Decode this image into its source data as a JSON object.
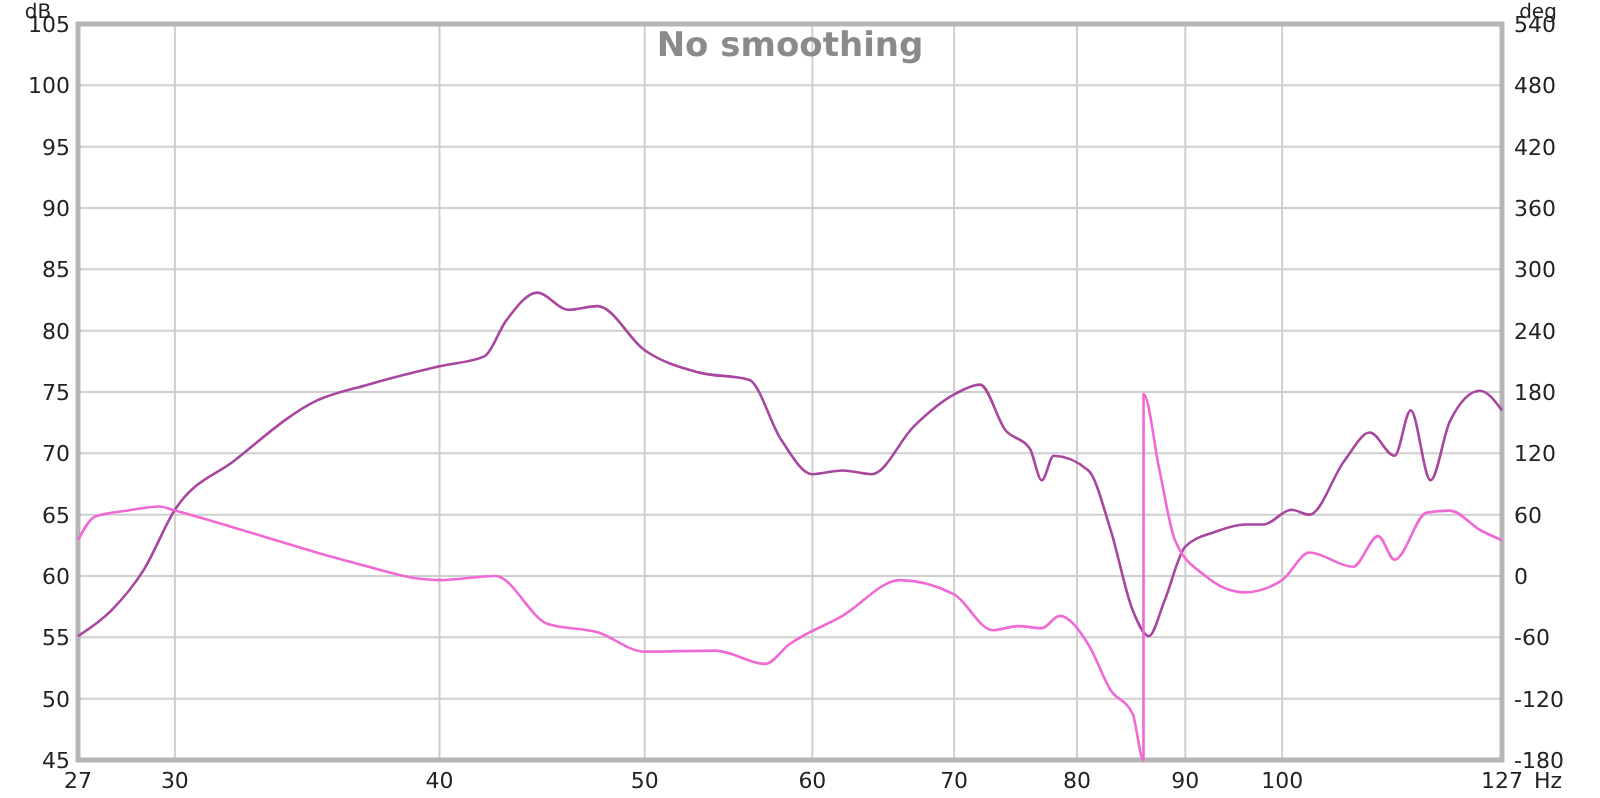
{
  "chart_data": {
    "type": "line",
    "title": "No smoothing",
    "xlabel": "Hz",
    "ylabel": "dB",
    "y2label": "deg",
    "log": "x",
    "grid": true,
    "marker": "none",
    "line_style": "solid",
    "xlim": [
      27,
      127
    ],
    "xticks": [
      27,
      30,
      40,
      50,
      60,
      70,
      80,
      90,
      100,
      127
    ],
    "ylim": [
      45,
      105
    ],
    "yticks": [
      45,
      50,
      55,
      60,
      65,
      70,
      75,
      80,
      85,
      90,
      95,
      100,
      105
    ],
    "y2lim": [
      -180,
      540
    ],
    "y2ticks": [
      -180,
      -120,
      -60,
      0,
      60,
      120,
      180,
      240,
      300,
      360,
      420,
      480,
      540
    ],
    "series": [
      {
        "color": "#a8479f",
        "x": [
          27,
          28,
          29,
          30,
          32,
          35,
          37,
          40,
          42,
          43,
          44.5,
          46,
          47.5,
          50,
          53,
          56,
          58,
          60,
          62,
          64,
          67,
          70,
          72,
          74,
          76,
          77,
          78,
          81,
          83,
          85,
          86.5,
          88,
          90,
          93,
          96,
          98,
          101,
          103,
          107,
          110,
          113,
          115,
          117.5,
          120,
          124,
          127
        ],
        "values": [
          55.1,
          57.2,
          60.5,
          65.4,
          69.4,
          74.3,
          75.6,
          77.1,
          77.9,
          80.8,
          83.1,
          81.7,
          82,
          78.4,
          76.6,
          76,
          71.1,
          68.3,
          68.6,
          68.3,
          72.2,
          74.8,
          75.6,
          71.9,
          70.4,
          67.8,
          69.8,
          68.6,
          63.7,
          57.2,
          55.1,
          58,
          62.4,
          63.6,
          64.2,
          64.2,
          65.4,
          65,
          69.4,
          71.7,
          69.8,
          73.5,
          67.8,
          72.6,
          75.1,
          73.5
        ]
      },
      {
        "color": "#f06ad6",
        "axis": "y2",
        "x": [
          27,
          27.5,
          28.5,
          29.5,
          30,
          33,
          36,
          40,
          42.5,
          45,
          47.5,
          50,
          54,
          57,
          58.5,
          62,
          66,
          70,
          73,
          75,
          77,
          78.5,
          81,
          83,
          85,
          86,
          86.01,
          87.5,
          89,
          92,
          96,
          100,
          103,
          108,
          111,
          113,
          117,
          120,
          124,
          127
        ],
        "values": [
          35,
          58,
          64,
          68,
          64,
          39,
          16,
          -4,
          0,
          -47,
          -55,
          -74,
          -73,
          -86,
          -67,
          -39,
          -4,
          -18,
          -53,
          -49,
          -51,
          -39,
          -67,
          -112,
          -135,
          -180,
          178,
          104,
          35,
          0,
          -16,
          -4,
          23,
          9,
          39,
          16,
          62,
          64,
          45,
          35
        ]
      }
    ]
  }
}
